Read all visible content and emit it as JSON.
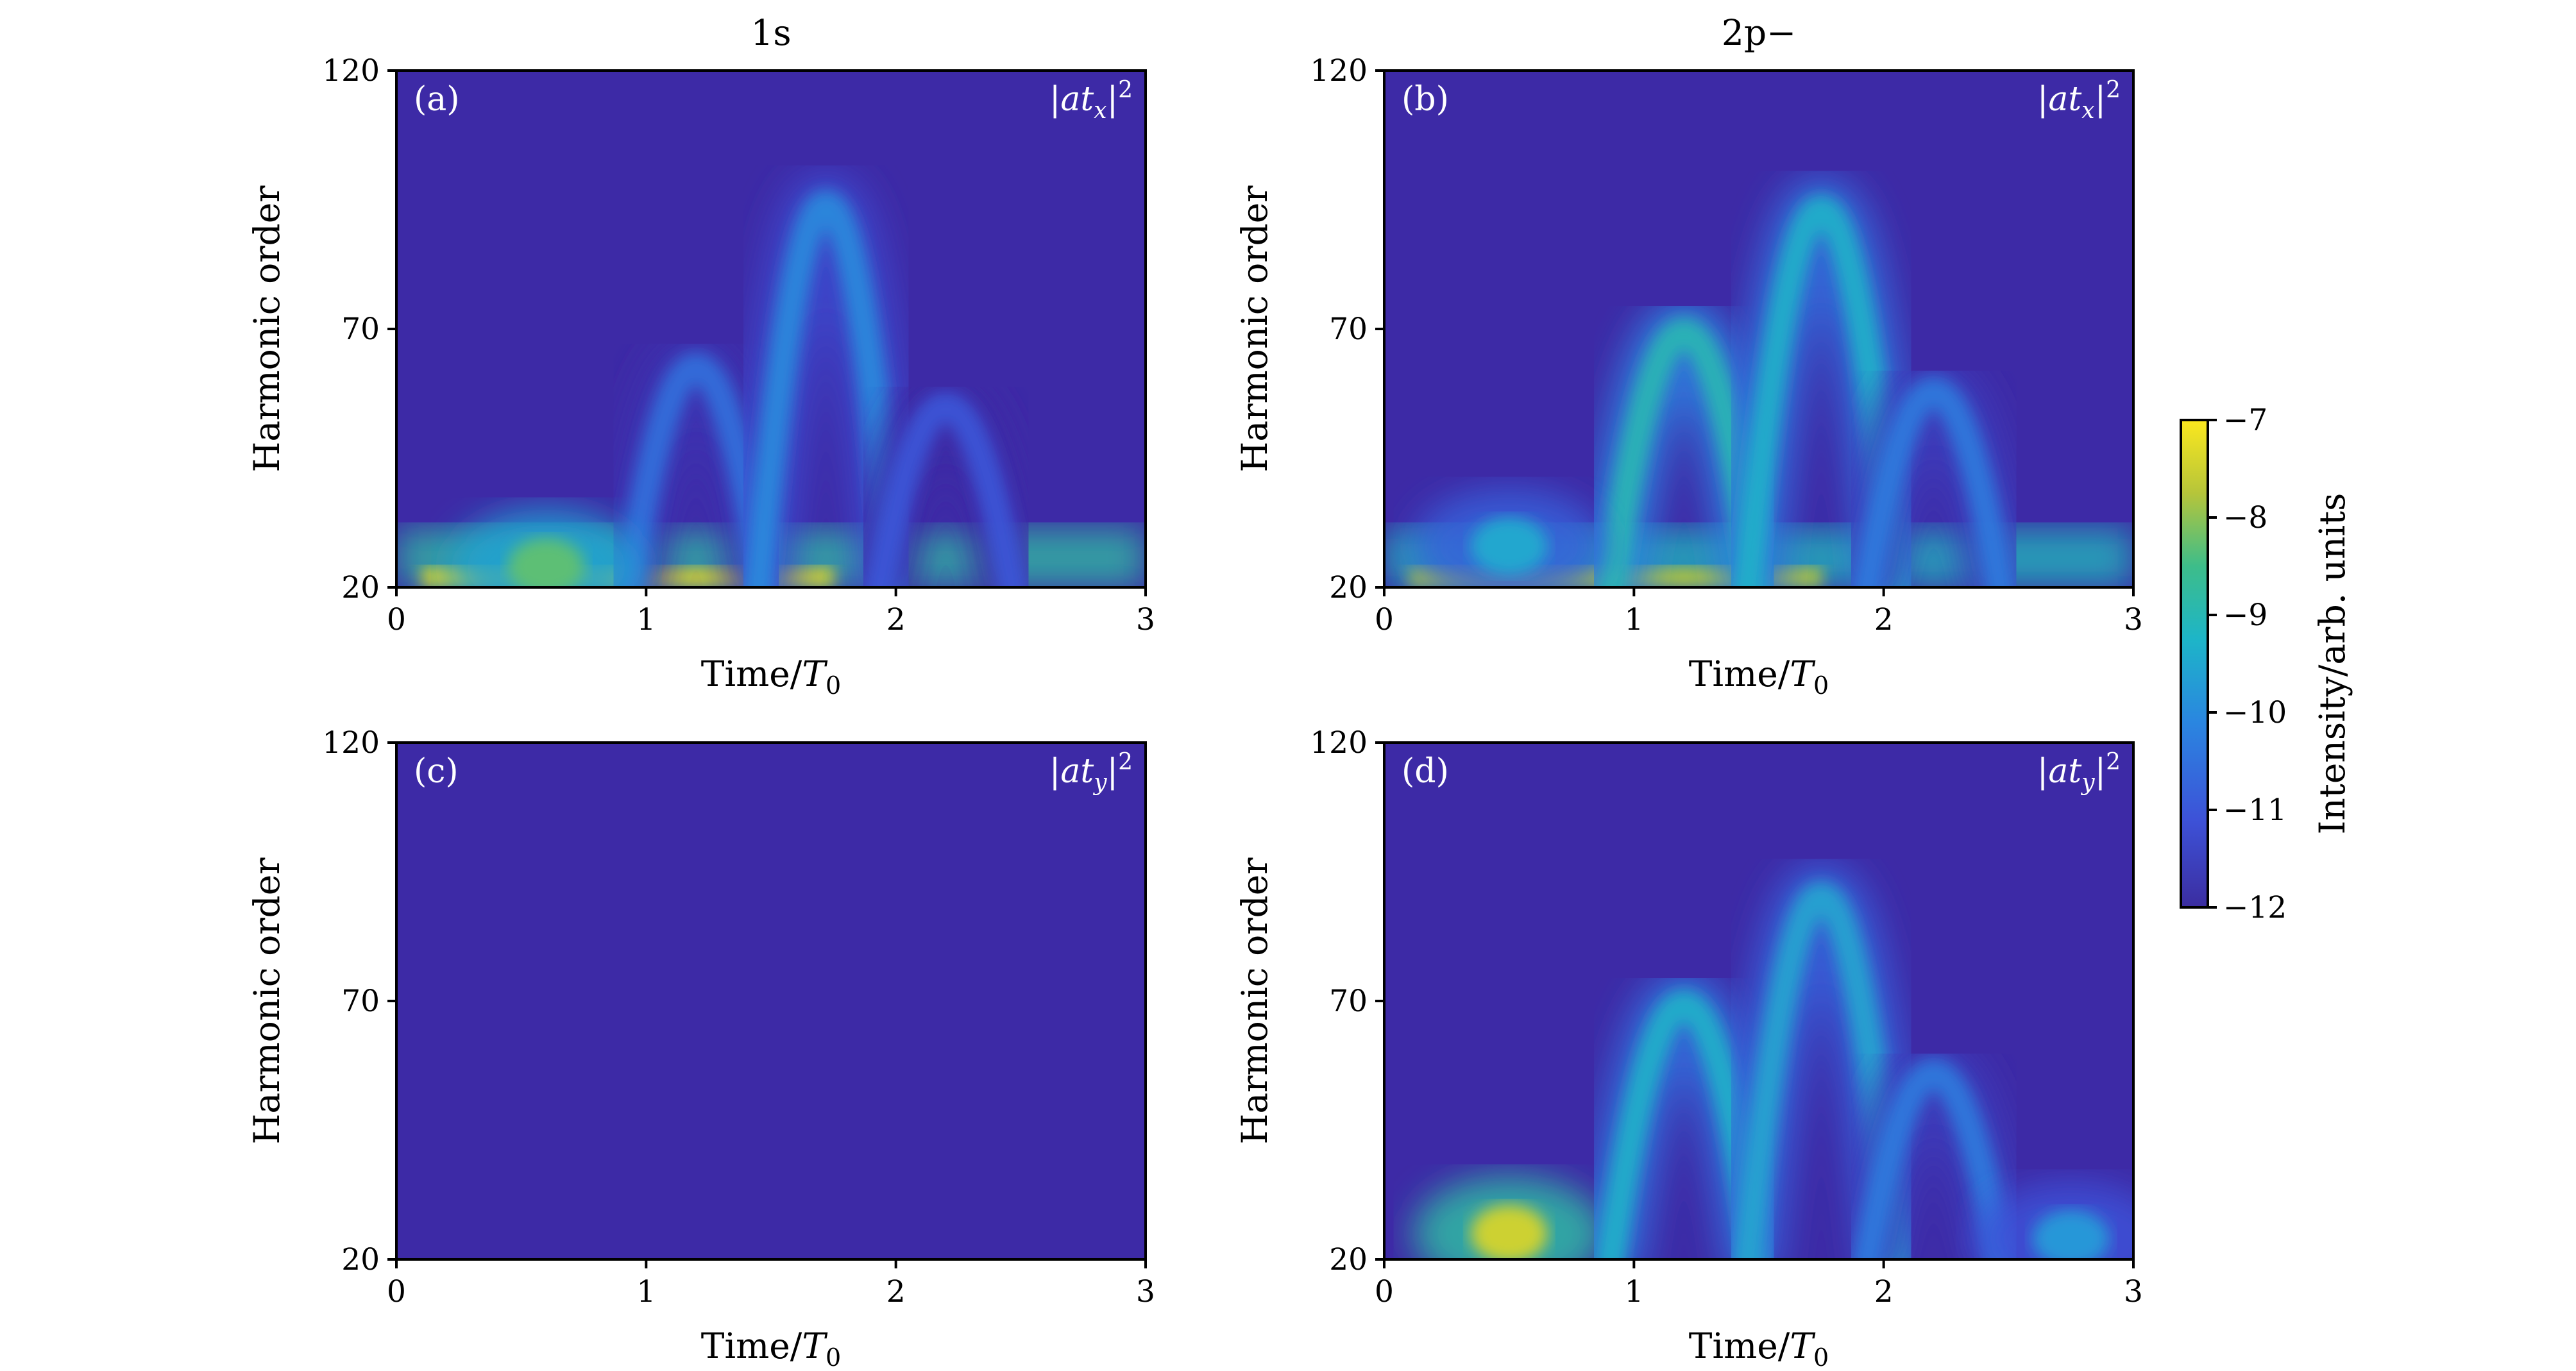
{
  "figure": {
    "column_titles": [
      "1s",
      "2p−"
    ],
    "colorbar": {
      "label": "Intensity/arb. units",
      "range": [
        -12,
        -7
      ],
      "ticks": [
        -7,
        -8,
        -9,
        -10,
        -11,
        -12
      ],
      "tick_labels": [
        "−7",
        "−8",
        "−9",
        "−10",
        "−11",
        "−12"
      ],
      "colormap": "viridis",
      "colors": [
        "#440154",
        "#3b3da0",
        "#2f6fd8",
        "#21a3c9",
        "#3dbd8a",
        "#9bd048",
        "#fde725"
      ]
    }
  },
  "chart_data": [
    {
      "type": "heatmap",
      "panel": "(a)",
      "column": "1s",
      "quantity_label": "|at_x|^2",
      "quantity_base": "|at",
      "quantity_sub": "x",
      "quantity_sup": "2",
      "xlabel": "Time/T₀",
      "xlabel_text": "Time/",
      "xlabel_var": "T",
      "xlabel_sub": "0",
      "ylabel": "Harmonic order",
      "xlim": [
        0,
        3
      ],
      "ylim": [
        20,
        120
      ],
      "x_ticks": [
        0,
        1,
        2,
        3
      ],
      "x_tick_labels": [
        "0",
        "1",
        "2",
        "3"
      ],
      "y_ticks": [
        20,
        70,
        120
      ],
      "y_tick_labels": [
        "20",
        "70",
        "120"
      ],
      "background_value": -12,
      "features": [
        {
          "kind": "low_band",
          "x_range": [
            0.0,
            3.0
          ],
          "y_range": [
            20,
            24
          ],
          "peak_value": -7.5
        },
        {
          "kind": "arc",
          "x_center": 1.2,
          "x_width": 0.55,
          "y_peak": 65,
          "peak_value": -10.5
        },
        {
          "kind": "arc",
          "x_center": 1.72,
          "x_width": 0.55,
          "y_peak": 98,
          "peak_value": -10.0
        },
        {
          "kind": "arc",
          "x_center": 2.2,
          "x_width": 0.55,
          "y_peak": 57,
          "peak_value": -11.0
        },
        {
          "kind": "blob",
          "x_center": 0.6,
          "y_center": 24,
          "peak_value": -8.3
        }
      ]
    },
    {
      "type": "heatmap",
      "panel": "(b)",
      "column": "2p−",
      "quantity_label": "|at_x|^2",
      "quantity_base": "|at",
      "quantity_sub": "x",
      "quantity_sup": "2",
      "xlabel": "Time/T₀",
      "xlabel_text": "Time/",
      "xlabel_var": "T",
      "xlabel_sub": "0",
      "ylabel": "Harmonic order",
      "xlim": [
        0,
        3
      ],
      "ylim": [
        20,
        120
      ],
      "x_ticks": [
        0,
        1,
        2,
        3
      ],
      "x_tick_labels": [
        "0",
        "1",
        "2",
        "3"
      ],
      "y_ticks": [
        20,
        70,
        120
      ],
      "y_tick_labels": [
        "20",
        "70",
        "120"
      ],
      "background_value": -12,
      "features": [
        {
          "kind": "low_band",
          "x_range": [
            0.0,
            3.0
          ],
          "y_range": [
            20,
            24
          ],
          "peak_value": -7.8
        },
        {
          "kind": "arc",
          "x_center": 1.2,
          "x_width": 0.6,
          "y_peak": 72,
          "peak_value": -9.0
        },
        {
          "kind": "arc",
          "x_center": 1.75,
          "x_width": 0.6,
          "y_peak": 97,
          "peak_value": -9.3
        },
        {
          "kind": "arc",
          "x_center": 2.2,
          "x_width": 0.55,
          "y_peak": 60,
          "peak_value": -10.3
        },
        {
          "kind": "blob",
          "x_center": 0.5,
          "y_center": 28,
          "peak_value": -9.5
        }
      ]
    },
    {
      "type": "heatmap",
      "panel": "(c)",
      "column": "1s",
      "quantity_label": "|at_y|^2",
      "quantity_base": "|at",
      "quantity_sub": "y",
      "quantity_sup": "2",
      "xlabel": "Time/T₀",
      "xlabel_text": "Time/",
      "xlabel_var": "T",
      "xlabel_sub": "0",
      "ylabel": "Harmonic order",
      "xlim": [
        0,
        3
      ],
      "ylim": [
        20,
        120
      ],
      "x_ticks": [
        0,
        1,
        2,
        3
      ],
      "x_tick_labels": [
        "0",
        "1",
        "2",
        "3"
      ],
      "y_ticks": [
        20,
        70,
        120
      ],
      "y_tick_labels": [
        "20",
        "70",
        "120"
      ],
      "background_value": -12,
      "features": []
    },
    {
      "type": "heatmap",
      "panel": "(d)",
      "column": "2p−",
      "quantity_label": "|at_y|^2",
      "quantity_base": "|at",
      "quantity_sub": "y",
      "quantity_sup": "2",
      "xlabel": "Time/T₀",
      "xlabel_text": "Time/",
      "xlabel_var": "T",
      "xlabel_sub": "0",
      "ylabel": "Harmonic order",
      "xlim": [
        0,
        3
      ],
      "ylim": [
        20,
        120
      ],
      "x_ticks": [
        0,
        1,
        2,
        3
      ],
      "x_tick_labels": [
        "0",
        "1",
        "2",
        "3"
      ],
      "y_ticks": [
        20,
        70,
        120
      ],
      "y_tick_labels": [
        "20",
        "70",
        "120"
      ],
      "background_value": -12,
      "features": [
        {
          "kind": "blob",
          "x_center": 0.5,
          "y_center": 25,
          "peak_value": -7.5
        },
        {
          "kind": "arc",
          "x_center": 1.2,
          "x_width": 0.6,
          "y_peak": 72,
          "peak_value": -9.3
        },
        {
          "kind": "arc",
          "x_center": 1.75,
          "x_width": 0.6,
          "y_peak": 94,
          "peak_value": -9.5
        },
        {
          "kind": "arc",
          "x_center": 2.2,
          "x_width": 0.55,
          "y_peak": 58,
          "peak_value": -10.3
        },
        {
          "kind": "blob",
          "x_center": 2.75,
          "y_center": 24,
          "peak_value": -9.8
        }
      ]
    }
  ]
}
